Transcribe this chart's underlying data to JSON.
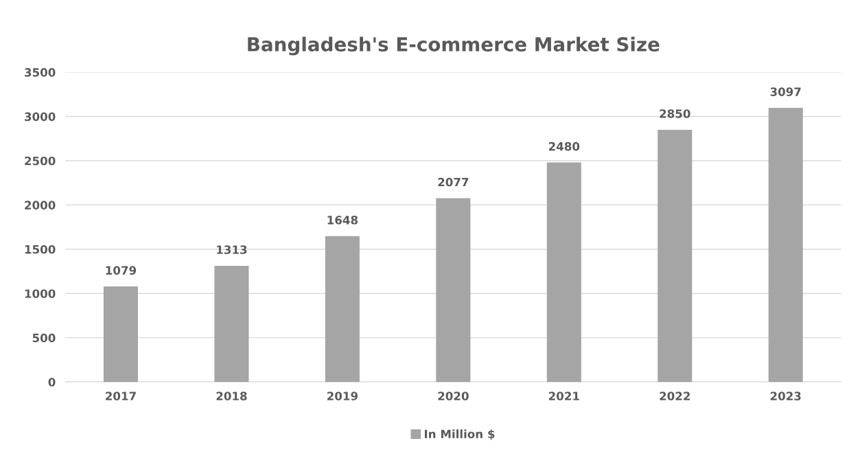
{
  "chart_data": {
    "type": "bar",
    "title": "Bangladesh's E-commerce Market Size",
    "categories": [
      "2017",
      "2018",
      "2019",
      "2020",
      "2021",
      "2022",
      "2023"
    ],
    "series": [
      {
        "name": "In Million $",
        "color": "#a5a5a5",
        "values": [
          1079,
          1313,
          1648,
          2077,
          2480,
          2850,
          3097
        ]
      }
    ],
    "ylim": [
      0,
      3500
    ],
    "yticks": [
      0,
      500,
      1000,
      1500,
      2000,
      2500,
      3000,
      3500
    ],
    "grid": "y",
    "legend": "bottom",
    "data_labels": true
  }
}
